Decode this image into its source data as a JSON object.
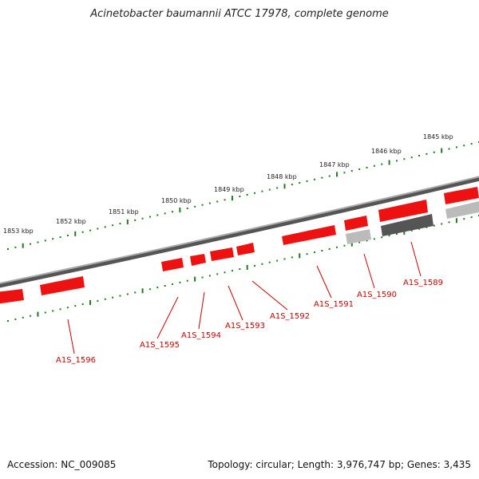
{
  "title": "Acinetobacter baumannii ATCC 17978, complete genome",
  "footer": {
    "accession": "Accession: NC_009085",
    "summary": "Topology: circular; Length: 3,976,747 bp; Genes: 3,435"
  },
  "colors": {
    "gene_forward": "#ee1111",
    "gene_highlight": "#ff7777",
    "gene_gray_dark": "#555555",
    "gene_gray_light": "#bbbbbb",
    "tick": "#1e7a1e",
    "backbone": "#888888",
    "label": "#cc0000"
  },
  "ruler_outer": [
    "1845 kbp",
    "1846 kbp",
    "1847 kbp",
    "1848 kbp",
    "1849 kbp",
    "1850 kbp",
    "1851 kbp",
    "1852 kbp",
    "1853 kbp"
  ],
  "gene_labels": [
    "A1S_1589",
    "A1S_1590",
    "A1S_1591",
    "A1S_1592",
    "A1S_1593",
    "A1S_1594",
    "A1S_1595",
    "A1S_1596"
  ]
}
